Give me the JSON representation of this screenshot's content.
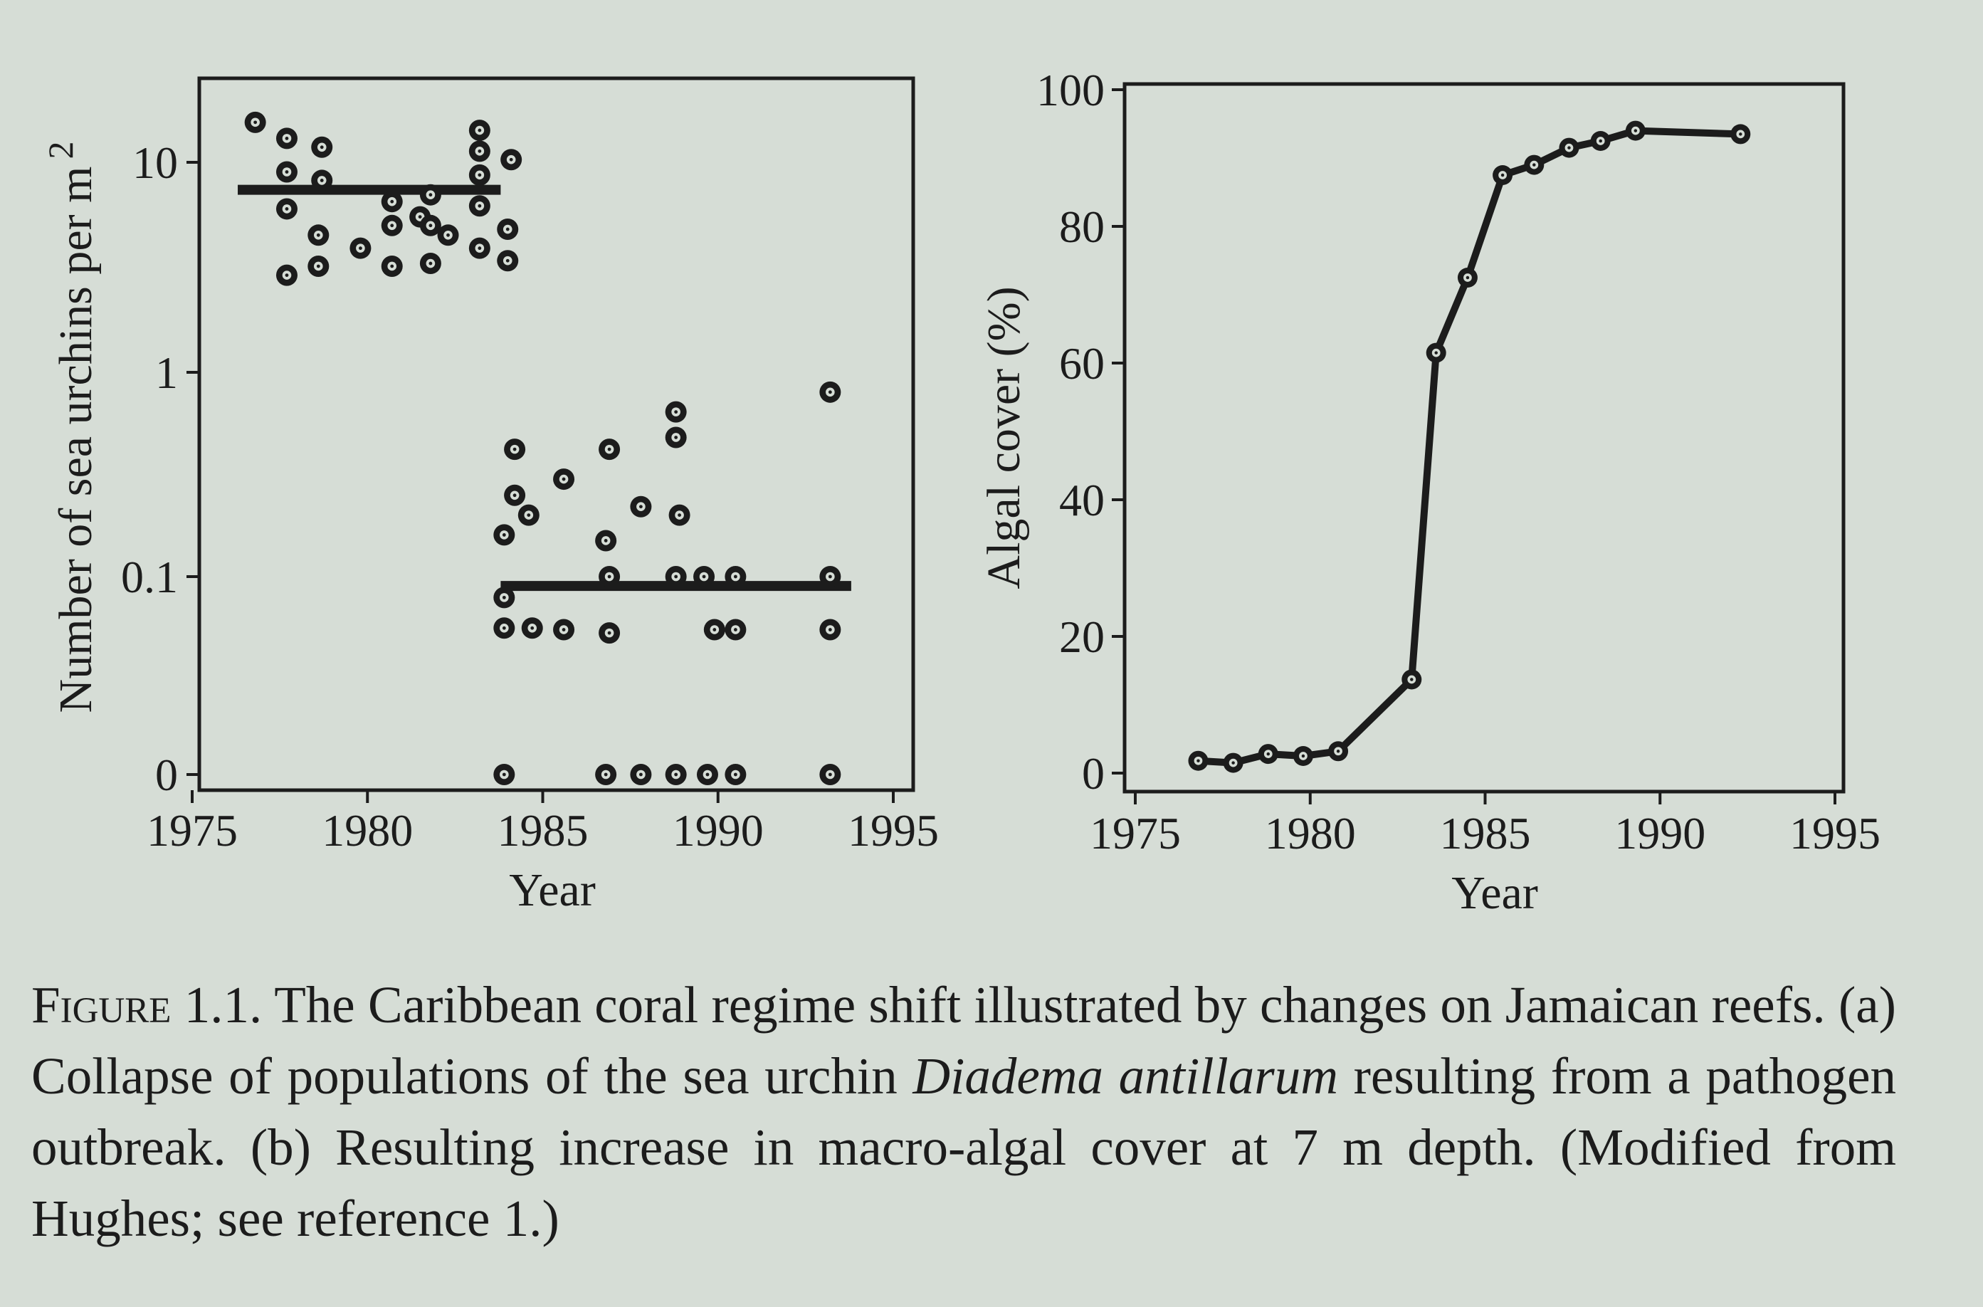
{
  "chart_data": [
    {
      "panel": "a",
      "type": "scatter",
      "xlabel": "Year",
      "ylabel": "Number of sea urchins per m",
      "ylabel_superscript": "2",
      "yscale": "log (with 0 baseline)",
      "xlim": [
        1975,
        1995
      ],
      "xticks": [
        1975,
        1980,
        1985,
        1990,
        1995
      ],
      "yticks": [
        "10",
        "1",
        "0.1",
        "0"
      ],
      "mean_lines": [
        {
          "x": [
            1976.3,
            1983.8
          ],
          "y": 7.4
        },
        {
          "x": [
            1983.8,
            1993.8
          ],
          "y": 0.09
        }
      ],
      "points": [
        {
          "x": 1976.8,
          "y": 15.5
        },
        {
          "x": 1977.7,
          "y": 13
        },
        {
          "x": 1977.7,
          "y": 9
        },
        {
          "x": 1977.7,
          "y": 6
        },
        {
          "x": 1977.7,
          "y": 2.9
        },
        {
          "x": 1978.7,
          "y": 11.8
        },
        {
          "x": 1978.7,
          "y": 8.2
        },
        {
          "x": 1978.6,
          "y": 4.5
        },
        {
          "x": 1978.6,
          "y": 3.2
        },
        {
          "x": 1979.8,
          "y": 3.9
        },
        {
          "x": 1980.7,
          "y": 6.5
        },
        {
          "x": 1980.7,
          "y": 5.0
        },
        {
          "x": 1980.7,
          "y": 3.2
        },
        {
          "x": 1981.5,
          "y": 5.5
        },
        {
          "x": 1981.8,
          "y": 7.0
        },
        {
          "x": 1981.8,
          "y": 5.0
        },
        {
          "x": 1981.8,
          "y": 3.3
        },
        {
          "x": 1982.3,
          "y": 4.5
        },
        {
          "x": 1983.2,
          "y": 14.2
        },
        {
          "x": 1983.2,
          "y": 11.3
        },
        {
          "x": 1983.2,
          "y": 8.7
        },
        {
          "x": 1983.2,
          "y": 6.2
        },
        {
          "x": 1983.2,
          "y": 3.9
        },
        {
          "x": 1984.1,
          "y": 10.3
        },
        {
          "x": 1984.0,
          "y": 4.8
        },
        {
          "x": 1984.0,
          "y": 3.4
        },
        {
          "x": 1984.2,
          "y": 0.42
        },
        {
          "x": 1984.2,
          "y": 0.25
        },
        {
          "x": 1984.6,
          "y": 0.2
        },
        {
          "x": 1983.9,
          "y": 0.16
        },
        {
          "x": 1983.9,
          "y": 0.079
        },
        {
          "x": 1983.9,
          "y": 0.056
        },
        {
          "x": 1984.7,
          "y": 0.056
        },
        {
          "x": 1985.6,
          "y": 0.055
        },
        {
          "x": 1985.6,
          "y": 0.3
        },
        {
          "x": 1986.9,
          "y": 0.42
        },
        {
          "x": 1986.8,
          "y": 0.15
        },
        {
          "x": 1986.9,
          "y": 0.1
        },
        {
          "x": 1986.9,
          "y": 0.053
        },
        {
          "x": 1987.8,
          "y": 0.22
        },
        {
          "x": 1988.8,
          "y": 0.64
        },
        {
          "x": 1988.8,
          "y": 0.48
        },
        {
          "x": 1988.9,
          "y": 0.2
        },
        {
          "x": 1988.8,
          "y": 0.1
        },
        {
          "x": 1989.6,
          "y": 0.1
        },
        {
          "x": 1990.5,
          "y": 0.1
        },
        {
          "x": 1989.9,
          "y": 0.055
        },
        {
          "x": 1990.5,
          "y": 0.055
        },
        {
          "x": 1993.2,
          "y": 0.8
        },
        {
          "x": 1993.2,
          "y": 0.1
        },
        {
          "x": 1993.2,
          "y": 0.055
        },
        {
          "x": 1983.9,
          "y": 0
        },
        {
          "x": 1986.8,
          "y": 0
        },
        {
          "x": 1987.8,
          "y": 0
        },
        {
          "x": 1988.8,
          "y": 0
        },
        {
          "x": 1989.7,
          "y": 0
        },
        {
          "x": 1990.5,
          "y": 0
        },
        {
          "x": 1993.2,
          "y": 0
        }
      ]
    },
    {
      "panel": "b",
      "type": "line",
      "xlabel": "Year",
      "ylabel": "Algal cover (%)",
      "xlim": [
        1975,
        1995
      ],
      "ylim": [
        0,
        100
      ],
      "xticks": [
        1975,
        1980,
        1985,
        1990,
        1995
      ],
      "yticks": [
        0,
        20,
        40,
        60,
        80,
        100
      ],
      "x": [
        1976.8,
        1977.8,
        1978.8,
        1979.8,
        1980.8,
        1982.9,
        1983.6,
        1984.5,
        1985.5,
        1986.4,
        1987.4,
        1988.3,
        1989.3,
        1992.3
      ],
      "y": [
        1.8,
        1.5,
        2.8,
        2.5,
        3.2,
        13.7,
        61.5,
        72.5,
        87.5,
        89,
        91.5,
        92.5,
        94,
        93.5
      ]
    }
  ],
  "caption": {
    "label": "Figure 1.1.",
    "text_before_species": " The Caribbean coral regime shift illustrated by changes on Jamaican reefs. (a) Collapse of populations of the sea urchin ",
    "species": "Diadema antillarum",
    "text_after_species": " resulting from a pathogen outbreak. (b) Resulting increase in macro-algal cover at 7 m depth. (Modified from Hughes; see reference 1.)"
  }
}
